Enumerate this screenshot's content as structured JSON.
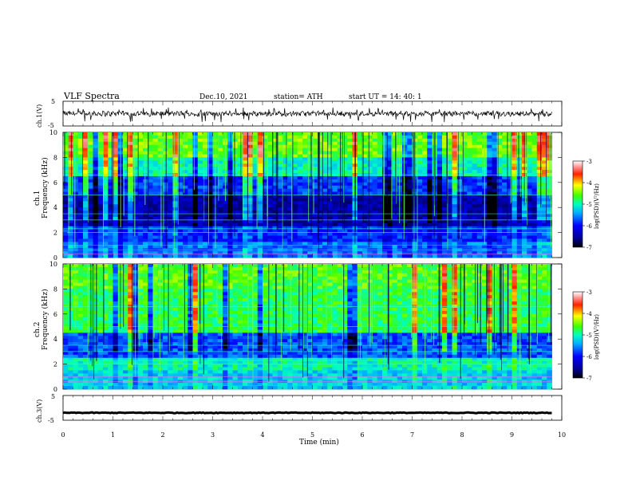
{
  "header": {
    "title": "VLF  Spectra",
    "date": "Dec.10, 2021",
    "station": "station= ATH",
    "start": "start  UT  =    14: 40: 1"
  },
  "chart_data": [
    {
      "type": "line",
      "panel": "ch1-waveform",
      "ylabel": "ch.1(V)",
      "ylim": [
        -5,
        5
      ],
      "y_ticks": [
        "5",
        "-5"
      ],
      "xlim": [
        0,
        10
      ],
      "data_extent_x": [
        0,
        9.8
      ],
      "description_values": {
        "baseline": 0,
        "typical_range": [
          -1.5,
          1.5
        ],
        "spike_range": [
          -3.5,
          2.5
        ]
      }
    },
    {
      "type": "heatmap",
      "panel": "ch1-spectrogram",
      "ylabel": "ch.1\nFrequency  (kHz)",
      "ylim": [
        0,
        10
      ],
      "y_ticks": [
        "0",
        "2",
        "4",
        "6",
        "8",
        "10"
      ],
      "xlim": [
        0,
        10
      ],
      "colorbar": {
        "label": "log(PSD)(V²/Hz)",
        "range": [
          -7,
          -3
        ],
        "ticks": [
          "-3",
          "-4",
          "-5",
          "-6",
          "-7"
        ]
      }
    },
    {
      "type": "heatmap",
      "panel": "ch2-spectrogram",
      "ylabel": "ch.2\nFrequency  (kHz)",
      "ylim": [
        0,
        10
      ],
      "y_ticks": [
        "0",
        "2",
        "4",
        "6",
        "8",
        "10"
      ],
      "xlim": [
        0,
        10
      ],
      "colorbar": {
        "label": "log(PSD)(V²/Hz)",
        "range": [
          -7,
          -3
        ],
        "ticks": [
          "-3",
          "-4",
          "-5",
          "-6",
          "-7"
        ]
      }
    },
    {
      "type": "line",
      "panel": "ch3-waveform",
      "ylabel": "ch.3(V)",
      "ylim": [
        -5,
        5
      ],
      "y_ticks": [
        "5",
        "-5"
      ],
      "xlim": [
        0,
        10
      ],
      "data_extent_x": [
        0,
        9.8
      ],
      "description_values": {
        "baseline": -2,
        "typical_range": [
          -2.3,
          -1.7
        ]
      }
    }
  ],
  "xaxis": {
    "label": "Time  (min)",
    "ticks": [
      "0",
      "1",
      "2",
      "3",
      "4",
      "5",
      "6",
      "7",
      "8",
      "9",
      "10"
    ]
  },
  "colors": {
    "jet": [
      "#000080",
      "#0000ff",
      "#00a0ff",
      "#00ffff",
      "#00ff80",
      "#80ff00",
      "#ffff00",
      "#ff8000",
      "#ff0000",
      "#ffffff"
    ]
  }
}
